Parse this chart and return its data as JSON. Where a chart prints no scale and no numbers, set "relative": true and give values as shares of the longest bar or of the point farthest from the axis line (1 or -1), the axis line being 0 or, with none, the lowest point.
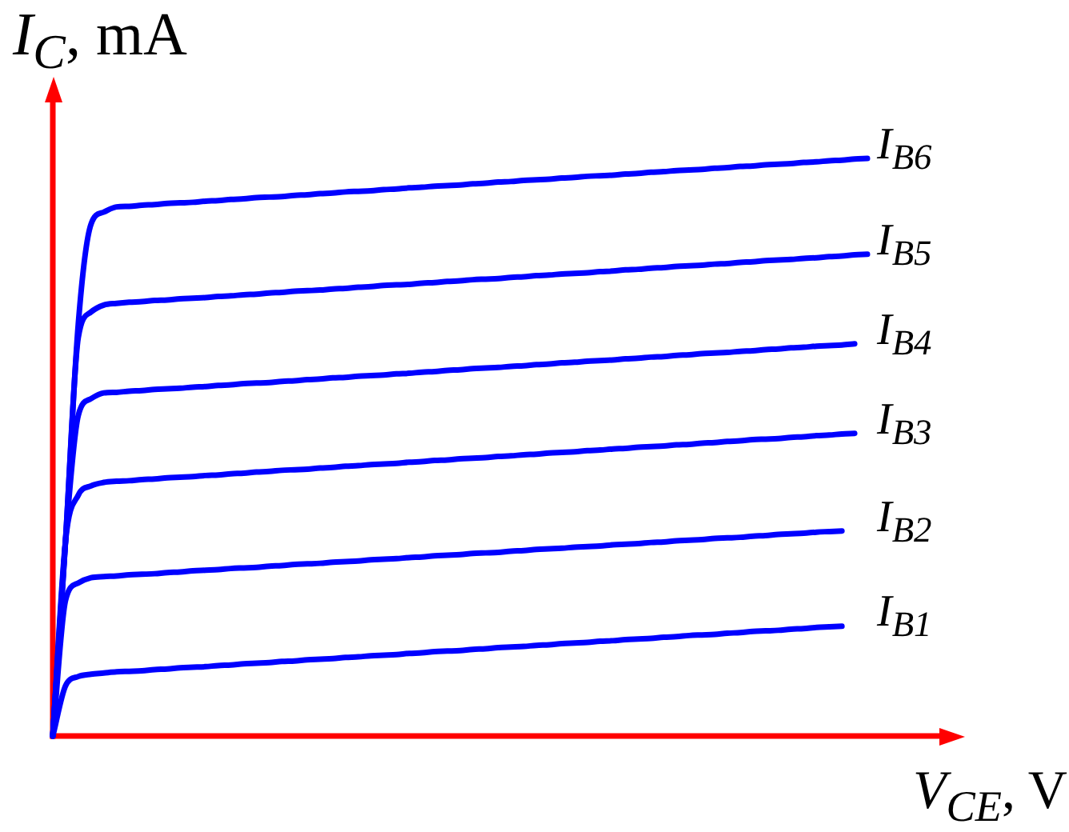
{
  "chart_data": {
    "type": "line",
    "xlabel": "V$_{CE}$, V",
    "ylabel": "I$_{C}$, mA",
    "relative": true,
    "marker": "none",
    "line_style": "solid",
    "categories": [
      null,
      null,
      null,
      null,
      null,
      null,
      null,
      null,
      null,
      null,
      null,
      null,
      null,
      null,
      null,
      null,
      null,
      null,
      null,
      null,
      null,
      null,
      null,
      null,
      null,
      null,
      null,
      null,
      null,
      null,
      null,
      null,
      null,
      null,
      null,
      null,
      null,
      null,
      null,
      null,
      null,
      null,
      null,
      null,
      null,
      null,
      null,
      null,
      null,
      null,
      null,
      null,
      null,
      null,
      null,
      null,
      null,
      null,
      null,
      null,
      null,
      null,
      null,
      null,
      null
    ],
    "series": [
      {
        "name": "I$_{B6}$",
        "color": "#0000ff",
        "values": [
          0,
          0.338,
          0.713,
          0.886,
          0.907,
          0.916,
          0.917,
          0.919,
          0.92,
          0.922,
          0.923,
          0.924,
          0.926,
          0.927,
          0.929,
          0.93,
          0.932,
          0.933,
          0.934,
          0.936,
          0.937,
          0.939,
          0.94,
          0.942,
          0.943,
          0.944,
          0.946,
          0.947,
          0.949,
          0.95,
          0.952,
          0.953,
          0.954,
          0.956,
          0.957,
          0.959,
          0.96,
          0.962,
          0.963,
          0.964,
          0.966,
          0.967,
          0.969,
          0.97,
          0.971,
          0.973,
          0.974,
          0.976,
          0.977,
          0.979,
          0.98,
          0.981,
          0.983,
          0.984,
          0.986,
          0.987,
          0.989,
          0.99,
          0.991,
          0.993,
          0.994,
          0.996,
          0.997,
          0.999,
          1
        ]
      },
      {
        "name": "I$_{B5}$",
        "color": "#0000ff",
        "values": [
          0,
          0.338,
          0.69,
          0.734,
          0.746,
          0.749,
          0.751,
          0.752,
          0.754,
          0.755,
          0.757,
          0.758,
          0.759,
          0.761,
          0.762,
          0.764,
          0.765,
          0.767,
          0.768,
          0.77,
          0.771,
          0.772,
          0.774,
          0.775,
          0.777,
          0.778,
          0.78,
          0.781,
          0.782,
          0.784,
          0.785,
          0.787,
          0.788,
          0.79,
          0.791,
          0.792,
          0.794,
          0.795,
          0.797,
          0.798,
          0.8,
          0.801,
          0.802,
          0.804,
          0.805,
          0.807,
          0.808,
          0.81,
          0.811,
          0.813,
          0.814,
          0.815,
          0.817,
          0.818,
          0.82,
          0.821,
          0.823,
          0.824,
          0.825,
          0.827,
          0.828,
          0.83,
          0.831,
          0.833,
          0.834
        ]
      },
      {
        "name": "I$_{B4}$",
        "color": "#0000ff",
        "values": [
          0,
          0.338,
          0.555,
          0.584,
          0.594,
          0.595,
          0.597,
          0.598,
          0.6,
          0.601,
          0.602,
          0.604,
          0.605,
          0.607,
          0.608,
          0.61,
          0.611,
          0.612,
          0.614,
          0.615,
          0.617,
          0.618,
          0.62,
          0.621,
          0.623,
          0.624,
          0.625,
          0.627,
          0.628,
          0.63,
          0.631,
          0.633,
          0.634,
          0.636,
          0.637,
          0.638,
          0.64,
          0.641,
          0.643,
          0.644,
          0.646,
          0.647,
          0.649,
          0.65,
          0.651,
          0.653,
          0.654,
          0.656,
          0.657,
          0.659,
          0.66,
          0.662,
          0.663,
          0.664,
          0.666,
          0.667,
          0.669,
          0.67,
          0.672,
          0.673,
          0.675,
          0.676,
          0.677,
          0.679,
          null
        ]
      },
      {
        "name": "I$_{B3}$",
        "color": "#0000ff",
        "values": [
          0,
          0.338,
          0.417,
          0.433,
          0.439,
          0.441,
          0.442,
          0.444,
          0.445,
          0.447,
          0.448,
          0.449,
          0.451,
          0.452,
          0.454,
          0.455,
          0.457,
          0.458,
          0.46,
          0.461,
          0.462,
          0.464,
          0.465,
          0.467,
          0.468,
          0.47,
          0.471,
          0.472,
          0.474,
          0.475,
          0.477,
          0.478,
          0.48,
          0.481,
          0.482,
          0.484,
          0.485,
          0.487,
          0.488,
          0.49,
          0.491,
          0.492,
          0.494,
          0.495,
          0.497,
          0.498,
          0.5,
          0.501,
          0.502,
          0.504,
          0.505,
          0.507,
          0.508,
          0.51,
          0.511,
          0.513,
          0.514,
          0.515,
          0.517,
          0.518,
          0.52,
          0.521,
          0.523,
          0.524,
          null
        ]
      },
      {
        "name": "I$_{B2}$",
        "color": "#0000ff",
        "values": [
          0,
          0.235,
          0.265,
          0.274,
          0.276,
          0.277,
          0.279,
          0.28,
          0.281,
          0.283,
          0.284,
          0.286,
          0.287,
          0.288,
          0.29,
          0.291,
          0.292,
          0.294,
          0.295,
          0.297,
          0.298,
          0.299,
          0.301,
          0.302,
          0.303,
          0.305,
          0.306,
          0.307,
          0.309,
          0.31,
          0.312,
          0.313,
          0.314,
          0.316,
          0.317,
          0.318,
          0.32,
          0.321,
          0.323,
          0.324,
          0.325,
          0.327,
          0.328,
          0.329,
          0.331,
          0.332,
          0.333,
          0.335,
          0.336,
          0.338,
          0.339,
          0.34,
          0.342,
          0.343,
          0.344,
          0.346,
          0.347,
          0.349,
          0.35,
          0.351,
          0.353,
          0.354,
          0.355,
          null,
          null
        ]
      },
      {
        "name": "I$_{B1}$",
        "color": "#0000ff",
        "values": [
          0,
          0.087,
          0.103,
          0.107,
          0.109,
          0.111,
          0.112,
          0.113,
          0.115,
          0.116,
          0.118,
          0.119,
          0.12,
          0.122,
          0.123,
          0.125,
          0.126,
          0.127,
          0.129,
          0.13,
          0.132,
          0.133,
          0.134,
          0.136,
          0.137,
          0.139,
          0.14,
          0.141,
          0.143,
          0.144,
          0.146,
          0.147,
          0.148,
          0.15,
          0.151,
          0.153,
          0.154,
          0.155,
          0.157,
          0.158,
          0.16,
          0.161,
          0.162,
          0.164,
          0.165,
          0.167,
          0.168,
          0.169,
          0.171,
          0.172,
          0.174,
          0.175,
          0.176,
          0.178,
          0.179,
          0.181,
          0.182,
          0.183,
          0.185,
          0.186,
          0.188,
          0.189,
          0.19,
          null,
          null
        ]
      }
    ]
  }
}
